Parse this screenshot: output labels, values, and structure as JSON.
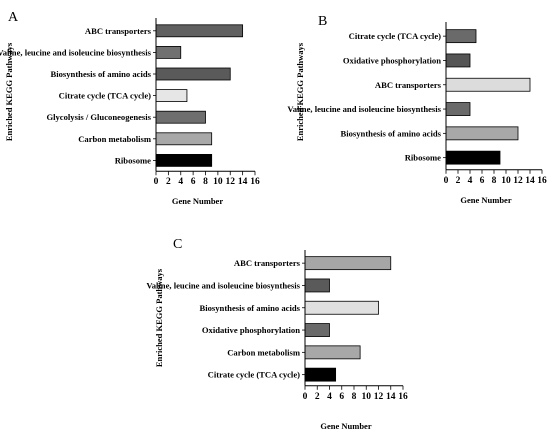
{
  "chart_data": [
    {
      "type": "bar",
      "panel": "A",
      "orientation": "horizontal",
      "ylabel": "Enriched KEGG Pathways",
      "xlabel": "Gene Number",
      "xlim": [
        0,
        16
      ],
      "xticks": [
        "0",
        "2",
        "4",
        "6",
        "8",
        "10",
        "12",
        "14",
        "16"
      ],
      "categories": [
        "ABC transporters",
        "Valine, leucine and isoleucine biosynthesis",
        "Biosynthesis of amino acids",
        "Citrate cycle (TCA cycle)",
        "Glycolysis / Gluconeogenesis",
        "Carbon metabolism",
        "Ribosome"
      ],
      "values": [
        14,
        4,
        12,
        5,
        8,
        9,
        9
      ],
      "colors": [
        "#606060",
        "#707070",
        "#5a5a5a",
        "#e6e6e6",
        "#6e6e6e",
        "#a8a8a8",
        "#000000"
      ],
      "grid": false
    },
    {
      "type": "bar",
      "panel": "B",
      "orientation": "horizontal",
      "ylabel": "Enriched KEGG Pathways",
      "xlabel": "Gene Number",
      "xlim": [
        0,
        16
      ],
      "xticks": [
        "0",
        "2",
        "4",
        "6",
        "8",
        "10",
        "12",
        "14",
        "16"
      ],
      "categories": [
        "Citrate cycle (TCA cycle)",
        "Oxidative phosphorylation",
        "ABC transporters",
        "Valine, leucine and isoleucine biosynthesis",
        "Biosynthesis of amino acids",
        "Ribosome"
      ],
      "values": [
        5,
        4,
        14,
        4,
        12,
        9
      ],
      "colors": [
        "#6a6a6a",
        "#555555",
        "#dcdcdc",
        "#6a6a6a",
        "#a8a8a8",
        "#000000"
      ],
      "grid": false
    },
    {
      "type": "bar",
      "panel": "C",
      "orientation": "horizontal",
      "ylabel": "Enriched KEGG Pathways",
      "xlabel": "Gene Number",
      "xlim": [
        0,
        16
      ],
      "xticks": [
        "0",
        "2",
        "4",
        "6",
        "8",
        "10",
        "12",
        "14",
        "16"
      ],
      "categories": [
        "ABC transporters",
        "Valine, leucine and isoleucine biosynthesis",
        "Biosynthesis of amino acids",
        "Oxidative phosphorylation",
        "Carbon metabolism",
        "Citrate cycle (TCA cycle)"
      ],
      "values": [
        14,
        4,
        12,
        4,
        9,
        5
      ],
      "colors": [
        "#a6a6a6",
        "#5a5a5a",
        "#e0e0e0",
        "#6a6a6a",
        "#a8a8a8",
        "#000000"
      ],
      "grid": false
    }
  ]
}
